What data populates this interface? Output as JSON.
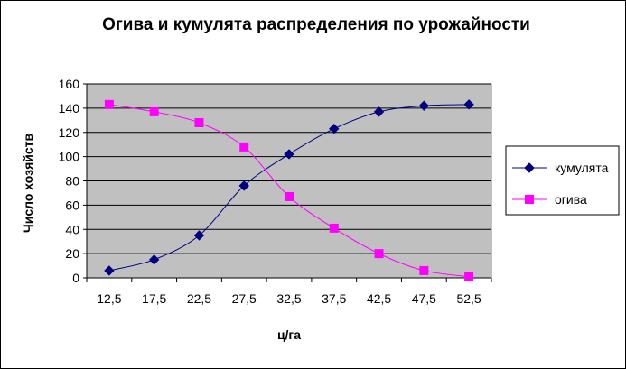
{
  "chart_data": {
    "type": "line",
    "title": "Огива и кумулята  распределения по урожайности",
    "xlabel": "ц/га",
    "ylabel": "Число  хозяйств",
    "categories": [
      "12,5",
      "17,5",
      "22,5",
      "27,5",
      "32,5",
      "37,5",
      "42,5",
      "47,5",
      "52,5"
    ],
    "ylim": [
      0,
      160
    ],
    "yticks": [
      "0",
      "20",
      "40",
      "60",
      "80",
      "100",
      "120",
      "140",
      "160"
    ],
    "grid": true,
    "legend_position": "right",
    "series": [
      {
        "name": "кумулята",
        "color": "#000080",
        "marker": "diamond",
        "values": [
          6,
          15,
          35,
          76,
          102,
          123,
          137,
          142,
          143
        ]
      },
      {
        "name": "огива",
        "color": "#FF00FF",
        "marker": "square",
        "values": [
          143,
          137,
          128,
          108,
          67,
          41,
          20,
          6,
          1
        ]
      }
    ]
  }
}
